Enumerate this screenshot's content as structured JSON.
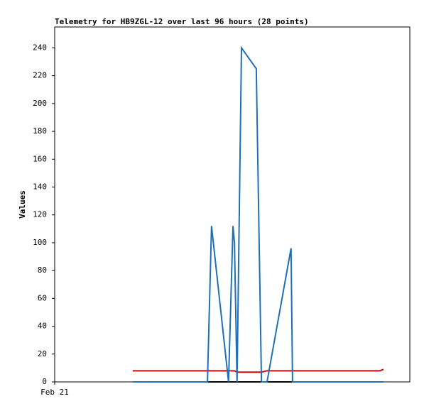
{
  "chart_data": {
    "type": "line",
    "title": "Telemetry for HB9ZGL-12 over last 96 hours (28 points)",
    "y_label": "Values",
    "x": [
      21.1,
      23.6,
      26.5,
      29.4,
      32.3,
      35.2,
      38.0,
      41.3,
      42.4,
      47.0,
      48.2,
      48.6,
      49.3,
      50.5,
      54.5,
      55.9,
      57.4,
      63.9,
      64.3,
      67.8,
      71.6,
      75.5,
      79.3,
      83.1,
      86.0,
      87.0,
      87.9,
      88.9
    ],
    "series": [
      {
        "color": "#e00000",
        "values": [
          8,
          8,
          8,
          8,
          8,
          8,
          8,
          8,
          8,
          8,
          8,
          8,
          7,
          7,
          7,
          7,
          8,
          8,
          8,
          8,
          8,
          8,
          8,
          8,
          8,
          8,
          8,
          9
        ]
      },
      {
        "color": "#000000",
        "values": [
          0,
          0,
          0,
          0,
          0,
          0,
          0,
          0,
          0,
          0,
          0,
          0,
          0,
          0,
          0,
          0,
          0,
          0,
          0,
          0,
          0,
          0,
          0,
          0,
          0,
          0,
          0,
          0
        ]
      },
      {
        "color": "#1f6fba",
        "values": [
          0,
          0,
          0,
          0,
          0,
          0,
          0,
          0,
          112,
          0,
          112,
          100,
          0,
          240,
          225,
          0,
          0,
          96,
          0,
          0,
          0,
          0,
          0,
          0,
          0,
          0,
          0,
          0
        ]
      }
    ],
    "xlim": [
      0,
      96
    ],
    "xticks": [
      {
        "value": 0,
        "label": "Feb 21"
      }
    ],
    "ylim": [
      0,
      255
    ],
    "yticks": [
      0,
      20,
      40,
      60,
      80,
      100,
      120,
      140,
      160,
      180,
      200,
      220,
      240
    ]
  }
}
